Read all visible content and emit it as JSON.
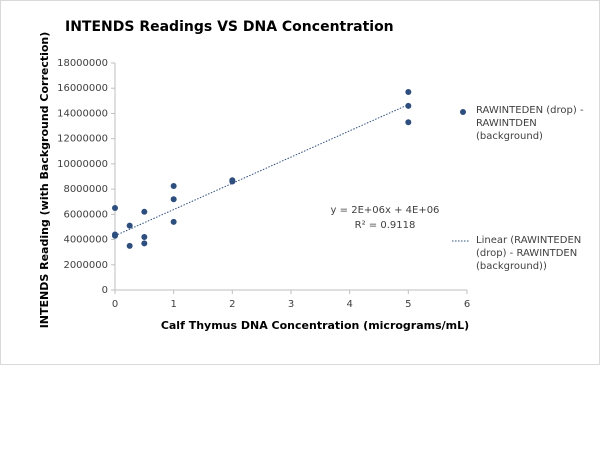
{
  "chart_data": {
    "type": "scatter",
    "title": "INTENDS Readings VS DNA Concentration",
    "x_label": "Calf Thymus DNA Concentration (micrograms/mL)",
    "y_label": "INTENDS Reading (with Background Correction)",
    "series": [
      {
        "name": "RAWINTEDEN (drop) - RAWINTDEN (background)",
        "color": "#2e4e7e",
        "x": [
          0,
          0,
          0,
          0.25,
          0.25,
          0.5,
          0.5,
          0.5,
          1,
          1,
          1,
          2,
          2,
          5,
          5,
          5
        ],
        "values": [
          6500000,
          4400000,
          4300000,
          5100000,
          3500000,
          6200000,
          4200000,
          3700000,
          8250000,
          7200000,
          5400000,
          8700000,
          8600000,
          15700000,
          14600000,
          13300000
        ]
      }
    ],
    "trendline": {
      "name": "Linear (RAWINTEDEN (drop) - RAWINTDEN (background))",
      "x": [
        0,
        5
      ],
      "values": [
        4300000,
        14700000
      ]
    },
    "annotations": [
      "y = 2E+06x + 4E+06",
      "R² = 0.9118"
    ],
    "xlim": [
      0,
      6
    ],
    "xticks": [
      0,
      1,
      2,
      3,
      4,
      5,
      6
    ],
    "ylim": [
      0,
      18000000
    ],
    "yticks": [
      0,
      2000000,
      4000000,
      6000000,
      8000000,
      10000000,
      12000000,
      14000000,
      16000000,
      18000000
    ]
  }
}
